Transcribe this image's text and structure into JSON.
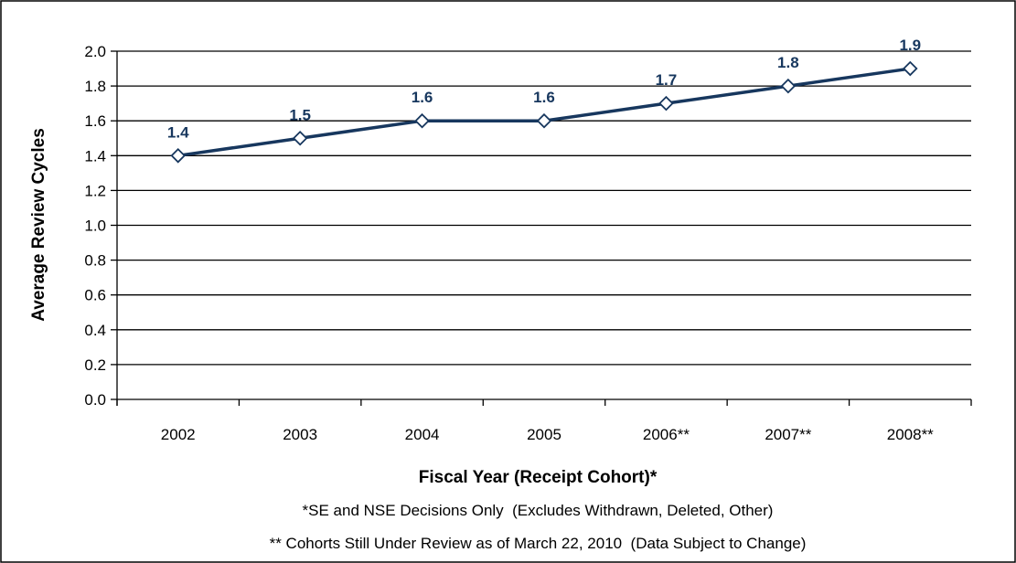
{
  "chart_data": {
    "type": "line",
    "categories": [
      "2002",
      "2003",
      "2004",
      "2005",
      "2006**",
      "2007**",
      "2008**"
    ],
    "series": [
      {
        "values": [
          1.4,
          1.5,
          1.6,
          1.6,
          1.7,
          1.8,
          1.9
        ],
        "data_labels": [
          "1.4",
          "1.5",
          "1.6",
          "1.6",
          "1.7",
          "1.8",
          "1.9"
        ]
      }
    ],
    "yticks": [
      "0.0",
      "0.2",
      "0.4",
      "0.6",
      "0.8",
      "1.0",
      "1.2",
      "1.4",
      "1.6",
      "1.8",
      "2.0"
    ],
    "ylim": [
      0,
      2.0
    ],
    "ylabel": "Average Review Cycles",
    "xlabel": "Fiscal Year (Receipt Cohort)*",
    "footnotes": [
      "*SE and NSE Decisions Only  (Excludes Withdrawn, Deleted, Other)",
      "** Cohorts Still Under Review as of March 22, 2010  (Data Subject to Change)"
    ],
    "grid": true,
    "legend": "none",
    "colors": {
      "line": "#17375e",
      "label": "#17375e",
      "grid": "#000000",
      "marker_fill": "#ffffff"
    }
  }
}
